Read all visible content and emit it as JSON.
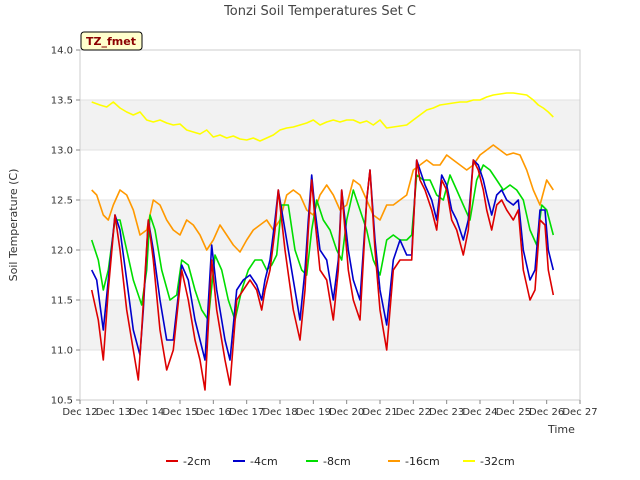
{
  "chart_data": {
    "type": "line",
    "title": "Tonzi Soil Temperatures Set C",
    "xlabel": "Time",
    "ylabel": "Soil Temperature (C)",
    "badge": "TZ_fmet",
    "x_ticks": [
      "Dec 12",
      "Dec 13",
      "Dec 14",
      "Dec 15",
      "Dec 16",
      "Dec 17",
      "Dec 18",
      "Dec 19",
      "Dec 20",
      "Dec 21",
      "Dec 22",
      "Dec 23",
      "Dec 24",
      "Dec 25",
      "Dec 26",
      "Dec 27"
    ],
    "y_ticks": [
      "10.5",
      "11.0",
      "11.5",
      "12.0",
      "12.5",
      "13.0",
      "13.5",
      "14.0"
    ],
    "xlim": [
      12,
      27
    ],
    "ylim": [
      10.5,
      14.0
    ],
    "grid": "horizontal bands",
    "legend_position": "bottom",
    "colors": {
      "-2cm": "#dd0000",
      "-4cm": "#0000cc",
      "-8cm": "#00dd00",
      "-16cm": "#ff9900",
      "-32cm": "#ffff00"
    },
    "series": [
      {
        "name": "-2cm",
        "color": "#dd0000",
        "x": [
          12.35,
          12.55,
          12.7,
          12.85,
          13.05,
          13.2,
          13.4,
          13.6,
          13.75,
          13.85,
          14.05,
          14.2,
          14.4,
          14.6,
          14.8,
          15.05,
          15.25,
          15.45,
          15.6,
          15.75,
          15.95,
          16.1,
          16.35,
          16.5,
          16.7,
          16.9,
          17.1,
          17.3,
          17.45,
          17.55,
          17.7,
          17.85,
          17.95,
          18.15,
          18.4,
          18.6,
          18.75,
          18.85,
          18.95,
          19.05,
          19.2,
          19.4,
          19.6,
          19.75,
          19.85,
          20.05,
          20.2,
          20.4,
          20.6,
          20.7,
          20.85,
          21.0,
          21.2,
          21.4,
          21.6,
          21.8,
          21.95,
          22.1,
          22.2,
          22.35,
          22.55,
          22.7,
          22.85,
          23.0,
          23.15,
          23.3,
          23.5,
          23.65,
          23.8,
          23.95,
          24.1,
          24.2,
          24.35,
          24.5,
          24.65,
          24.8,
          25.0,
          25.15,
          25.3,
          25.5,
          25.65,
          25.8,
          25.95,
          26.05,
          26.2
        ],
        "values": [
          11.6,
          11.3,
          10.9,
          11.6,
          12.35,
          12.0,
          11.4,
          11.0,
          10.7,
          11.2,
          12.3,
          11.9,
          11.2,
          10.8,
          11.0,
          11.8,
          11.5,
          11.1,
          10.9,
          10.6,
          11.9,
          11.4,
          10.9,
          10.65,
          11.5,
          11.6,
          11.7,
          11.6,
          11.4,
          11.6,
          11.8,
          12.2,
          12.6,
          12.0,
          11.4,
          11.1,
          11.6,
          12.2,
          12.7,
          12.3,
          11.8,
          11.7,
          11.3,
          11.8,
          12.6,
          11.8,
          11.5,
          11.3,
          12.5,
          12.8,
          12.0,
          11.4,
          11.0,
          11.8,
          11.9,
          11.9,
          11.9,
          12.9,
          12.7,
          12.6,
          12.4,
          12.2,
          12.7,
          12.6,
          12.3,
          12.2,
          11.95,
          12.2,
          12.9,
          12.8,
          12.6,
          12.4,
          12.2,
          12.45,
          12.5,
          12.4,
          12.3,
          12.4,
          11.8,
          11.5,
          11.6,
          12.3,
          12.25,
          11.8,
          11.55
        ]
      },
      {
        "name": "-4cm",
        "color": "#0000cc",
        "x": [
          12.35,
          12.5,
          12.7,
          12.85,
          13.05,
          13.2,
          13.4,
          13.6,
          13.8,
          13.9,
          14.05,
          14.2,
          14.4,
          14.6,
          14.8,
          15.05,
          15.25,
          15.45,
          15.6,
          15.75,
          15.95,
          16.1,
          16.35,
          16.5,
          16.7,
          16.9,
          17.1,
          17.3,
          17.45,
          17.55,
          17.7,
          17.85,
          17.95,
          18.15,
          18.4,
          18.6,
          18.75,
          18.85,
          18.95,
          19.05,
          19.2,
          19.4,
          19.6,
          19.75,
          19.85,
          20.05,
          20.2,
          20.4,
          20.6,
          20.7,
          20.85,
          21.0,
          21.2,
          21.4,
          21.6,
          21.8,
          21.95,
          22.1,
          22.2,
          22.35,
          22.55,
          22.7,
          22.85,
          23.0,
          23.15,
          23.3,
          23.5,
          23.65,
          23.8,
          23.95,
          24.1,
          24.2,
          24.35,
          24.5,
          24.65,
          24.8,
          25.0,
          25.15,
          25.3,
          25.5,
          25.65,
          25.8,
          25.95,
          26.05,
          26.2
        ],
        "values": [
          11.8,
          11.7,
          11.2,
          11.7,
          12.35,
          12.2,
          11.7,
          11.2,
          10.95,
          11.4,
          12.3,
          12.0,
          11.5,
          11.1,
          11.1,
          11.85,
          11.7,
          11.3,
          11.1,
          10.9,
          12.05,
          11.6,
          11.1,
          10.9,
          11.6,
          11.7,
          11.75,
          11.65,
          11.5,
          11.7,
          11.9,
          12.3,
          12.6,
          12.2,
          11.7,
          11.3,
          11.8,
          12.3,
          12.75,
          12.4,
          12.0,
          11.9,
          11.5,
          11.9,
          12.6,
          12.0,
          11.7,
          11.5,
          12.5,
          12.8,
          12.1,
          11.6,
          11.25,
          11.9,
          12.1,
          11.95,
          11.95,
          12.9,
          12.8,
          12.65,
          12.5,
          12.3,
          12.75,
          12.65,
          12.4,
          12.3,
          12.1,
          12.3,
          12.9,
          12.85,
          12.7,
          12.55,
          12.35,
          12.55,
          12.6,
          12.5,
          12.45,
          12.5,
          12.0,
          11.7,
          11.8,
          12.4,
          12.4,
          12.0,
          11.8
        ]
      },
      {
        "name": "-8cm",
        "color": "#00dd00",
        "x": [
          12.35,
          12.55,
          12.7,
          12.85,
          13.05,
          13.2,
          13.4,
          13.6,
          13.85,
          14.0,
          14.1,
          14.25,
          14.45,
          14.7,
          14.9,
          15.05,
          15.25,
          15.45,
          15.65,
          15.85,
          16.05,
          16.25,
          16.45,
          16.65,
          16.85,
          17.05,
          17.25,
          17.45,
          17.6,
          17.75,
          17.9,
          18.05,
          18.25,
          18.45,
          18.65,
          18.8,
          18.95,
          19.1,
          19.3,
          19.5,
          19.7,
          19.85,
          20.0,
          20.2,
          20.4,
          20.6,
          20.8,
          21.0,
          21.2,
          21.4,
          21.6,
          21.8,
          21.95,
          22.1,
          22.3,
          22.5,
          22.7,
          22.9,
          23.1,
          23.3,
          23.5,
          23.7,
          23.9,
          24.1,
          24.3,
          24.5,
          24.7,
          24.9,
          25.1,
          25.3,
          25.5,
          25.7,
          25.85,
          26.0,
          26.2
        ],
        "values": [
          12.1,
          11.9,
          11.6,
          11.8,
          12.3,
          12.3,
          12.0,
          11.7,
          11.45,
          11.8,
          12.35,
          12.2,
          11.8,
          11.5,
          11.55,
          11.9,
          11.85,
          11.6,
          11.4,
          11.3,
          11.95,
          11.8,
          11.5,
          11.3,
          11.6,
          11.8,
          11.9,
          11.9,
          11.8,
          11.85,
          11.95,
          12.45,
          12.45,
          12.0,
          11.8,
          11.75,
          12.2,
          12.5,
          12.3,
          12.2,
          12.0,
          11.9,
          12.3,
          12.6,
          12.4,
          12.2,
          11.9,
          11.75,
          12.1,
          12.15,
          12.1,
          12.1,
          12.15,
          12.75,
          12.7,
          12.7,
          12.55,
          12.5,
          12.75,
          12.6,
          12.45,
          12.3,
          12.7,
          12.85,
          12.8,
          12.7,
          12.6,
          12.65,
          12.6,
          12.5,
          12.2,
          12.05,
          12.45,
          12.4,
          12.15
        ]
      },
      {
        "name": "-16cm",
        "color": "#ff9900",
        "x": [
          12.35,
          12.5,
          12.7,
          12.85,
          13.0,
          13.2,
          13.4,
          13.6,
          13.8,
          14.0,
          14.2,
          14.4,
          14.6,
          14.8,
          15.0,
          15.2,
          15.4,
          15.6,
          15.8,
          16.0,
          16.2,
          16.4,
          16.6,
          16.8,
          17.0,
          17.2,
          17.4,
          17.6,
          17.8,
          18.0,
          18.2,
          18.4,
          18.6,
          18.8,
          19.0,
          19.2,
          19.4,
          19.6,
          19.8,
          20.0,
          20.2,
          20.4,
          20.6,
          20.8,
          21.0,
          21.2,
          21.4,
          21.6,
          21.8,
          22.0,
          22.2,
          22.4,
          22.6,
          22.8,
          23.0,
          23.2,
          23.4,
          23.6,
          23.8,
          24.0,
          24.2,
          24.4,
          24.6,
          24.8,
          25.0,
          25.2,
          25.4,
          25.6,
          25.8,
          26.0,
          26.2
        ],
        "values": [
          12.6,
          12.55,
          12.35,
          12.3,
          12.45,
          12.6,
          12.55,
          12.4,
          12.15,
          12.2,
          12.5,
          12.45,
          12.3,
          12.2,
          12.15,
          12.3,
          12.25,
          12.15,
          12.0,
          12.1,
          12.25,
          12.15,
          12.05,
          11.98,
          12.1,
          12.2,
          12.25,
          12.3,
          12.2,
          12.3,
          12.55,
          12.6,
          12.55,
          12.4,
          12.35,
          12.55,
          12.65,
          12.55,
          12.4,
          12.45,
          12.7,
          12.65,
          12.5,
          12.35,
          12.3,
          12.45,
          12.45,
          12.5,
          12.55,
          12.8,
          12.85,
          12.9,
          12.85,
          12.85,
          12.95,
          12.9,
          12.85,
          12.8,
          12.85,
          12.95,
          13.0,
          13.05,
          13.0,
          12.95,
          12.97,
          12.95,
          12.8,
          12.6,
          12.45,
          12.7,
          12.6
        ]
      },
      {
        "name": "-32cm",
        "color": "#ffff00",
        "x": [
          12.35,
          12.6,
          12.8,
          13.0,
          13.2,
          13.4,
          13.6,
          13.8,
          14.0,
          14.2,
          14.4,
          14.6,
          14.8,
          15.0,
          15.2,
          15.4,
          15.6,
          15.8,
          16.0,
          16.2,
          16.4,
          16.6,
          16.8,
          17.0,
          17.2,
          17.4,
          17.6,
          17.8,
          18.0,
          18.2,
          18.4,
          18.6,
          18.8,
          19.0,
          19.2,
          19.4,
          19.6,
          19.8,
          20.0,
          20.2,
          20.4,
          20.6,
          20.8,
          21.0,
          21.2,
          21.4,
          21.6,
          21.8,
          22.0,
          22.2,
          22.4,
          22.6,
          22.8,
          23.0,
          23.2,
          23.4,
          23.6,
          23.8,
          24.0,
          24.2,
          24.4,
          24.6,
          24.8,
          25.0,
          25.2,
          25.4,
          25.6,
          25.75,
          25.9,
          26.05,
          26.2
        ],
        "values": [
          13.48,
          13.45,
          13.43,
          13.48,
          13.42,
          13.38,
          13.35,
          13.38,
          13.3,
          13.28,
          13.3,
          13.27,
          13.25,
          13.26,
          13.2,
          13.18,
          13.16,
          13.2,
          13.13,
          13.15,
          13.12,
          13.14,
          13.11,
          13.1,
          13.12,
          13.09,
          13.12,
          13.15,
          13.2,
          13.22,
          13.23,
          13.25,
          13.27,
          13.3,
          13.25,
          13.28,
          13.3,
          13.28,
          13.3,
          13.3,
          13.27,
          13.29,
          13.25,
          13.3,
          13.22,
          13.23,
          13.24,
          13.25,
          13.3,
          13.35,
          13.4,
          13.42,
          13.45,
          13.46,
          13.47,
          13.48,
          13.48,
          13.5,
          13.5,
          13.53,
          13.55,
          13.56,
          13.57,
          13.57,
          13.56,
          13.55,
          13.5,
          13.45,
          13.42,
          13.38,
          13.33
        ]
      }
    ]
  }
}
